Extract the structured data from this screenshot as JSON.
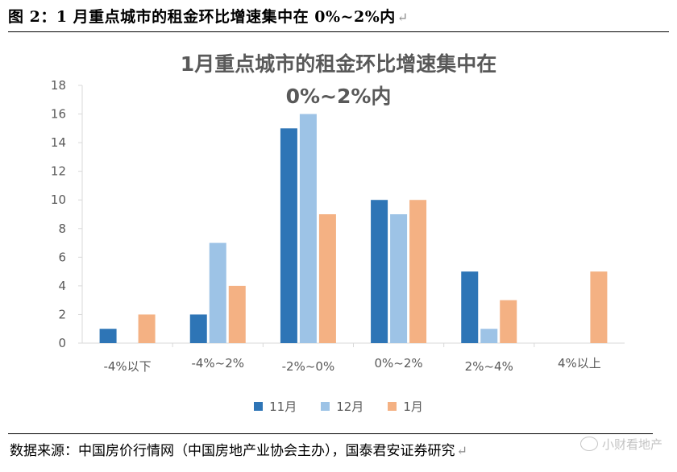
{
  "figure": {
    "caption": "图 2：1 月重点城市的租金环比增速集中在 0%~2%内",
    "return_mark": "↵"
  },
  "chart_data": {
    "type": "bar",
    "title_line1": "1月重点城市的租金环比增速集中在",
    "title_line2": "0%~2%内",
    "categories": [
      "-4%以下",
      "-4%~2%",
      "-2%~0%",
      "0%~2%",
      "2%~4%",
      "4%以上"
    ],
    "series": [
      {
        "name": "11月",
        "color": "#2e75b6",
        "values": [
          1,
          2,
          15,
          10,
          5,
          0
        ]
      },
      {
        "name": "12月",
        "color": "#9dc3e6",
        "values": [
          0,
          7,
          16,
          9,
          1,
          0
        ]
      },
      {
        "name": "1月",
        "color": "#f4b183",
        "values": [
          2,
          4,
          9,
          10,
          3,
          5
        ]
      }
    ],
    "ylim": [
      0,
      18
    ],
    "yticks": [
      0,
      2,
      4,
      6,
      8,
      10,
      12,
      14,
      16,
      18
    ],
    "grid": false,
    "legend_position": "bottom"
  },
  "source": {
    "text": "数据来源：中国房价行情网（中国房地产业协会主办），国泰君安证券研究",
    "return_mark": "↵"
  },
  "watermark": {
    "text": "小财看地产",
    "icon": "wechat-icon"
  }
}
